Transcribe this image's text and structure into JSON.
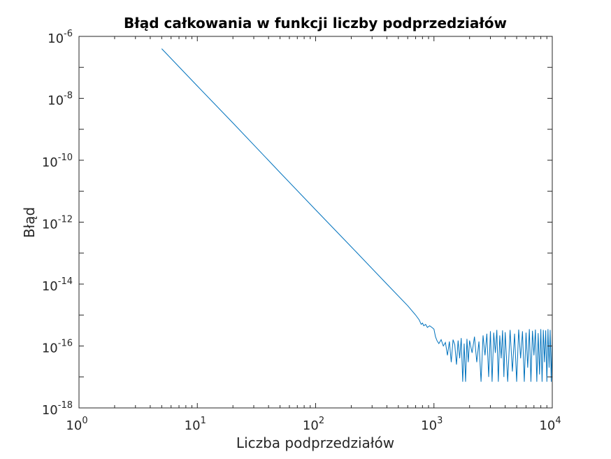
{
  "chart_data": {
    "type": "line",
    "title": "Błąd całkowania w funkcji liczby podprzedziałów",
    "xlabel": "Liczba podprzedziałów",
    "ylabel": "Błąd",
    "xscale": "log",
    "yscale": "log",
    "xlim": [
      1,
      10000
    ],
    "ylim": [
      1e-18,
      1e-06
    ],
    "grid": false,
    "box": true,
    "xticks": [
      {
        "base": "10",
        "exp": "0"
      },
      {
        "base": "10",
        "exp": "1"
      },
      {
        "base": "10",
        "exp": "2"
      },
      {
        "base": "10",
        "exp": "3"
      },
      {
        "base": "10",
        "exp": "4"
      }
    ],
    "yticks": [
      {
        "base": "10",
        "exp": "-18"
      },
      {
        "base": "10",
        "exp": "-16"
      },
      {
        "base": "10",
        "exp": "-14"
      },
      {
        "base": "10",
        "exp": "-12"
      },
      {
        "base": "10",
        "exp": "-10"
      },
      {
        "base": "10",
        "exp": "-8"
      },
      {
        "base": "10",
        "exp": "-6"
      }
    ],
    "series": [
      {
        "color": "#0072bd",
        "x": [
          5,
          10,
          20,
          50,
          100,
          200,
          400,
          600,
          700,
          750,
          780,
          800,
          820,
          850,
          880,
          920,
          960,
          1000,
          1030,
          1060,
          1100,
          1150,
          1200,
          1250,
          1300,
          1350,
          1400,
          1450,
          1500,
          1550,
          1600,
          1650,
          1700,
          1750,
          1800,
          1850,
          1900,
          1950,
          2000,
          2100,
          2200,
          2300,
          2400,
          2500,
          2600,
          2700,
          2800,
          2900,
          3000,
          3100,
          3200,
          3300,
          3400,
          3500,
          3600,
          3700,
          3800,
          3900,
          4000,
          4200,
          4400,
          4600,
          4800,
          5000,
          5200,
          5400,
          5600,
          5800,
          6000,
          6200,
          6400,
          6600,
          6800,
          7000,
          7200,
          7400,
          7600,
          7800,
          8000,
          8200,
          8400,
          8600,
          8800,
          9000,
          9200,
          9400,
          9600,
          9800,
          10000
        ],
        "y": [
          4e-07,
          2.5e-08,
          1.6e-09,
          4e-11,
          2.5e-12,
          1.6e-13,
          1e-14,
          2e-15,
          1e-15,
          7e-16,
          5e-16,
          5.5e-16,
          4.5e-16,
          5e-16,
          4e-16,
          4.5e-16,
          4e-16,
          3.5e-16,
          2e-16,
          1.5e-16,
          1.2e-16,
          1.6e-16,
          1e-16,
          1.3e-16,
          5e-17,
          1.4e-16,
          3e-17,
          1.6e-16,
          1.1e-16,
          2.5e-17,
          1.5e-16,
          4e-17,
          1.8e-16,
          7e-18,
          1.2e-16,
          7e-18,
          1.7e-16,
          3e-17,
          1.5e-16,
          6e-17,
          2e-16,
          3e-17,
          1.4e-16,
          7e-18,
          2.2e-16,
          5e-17,
          2.5e-16,
          1e-17,
          3e-16,
          7e-18,
          2.7e-16,
          6e-17,
          3.3e-16,
          7e-18,
          2.2e-16,
          4e-17,
          3.2e-16,
          1e-17,
          2.8e-16,
          7e-18,
          3.3e-16,
          1.5e-17,
          2.5e-16,
          7e-18,
          3.4e-16,
          4e-17,
          3e-16,
          7e-18,
          2.7e-16,
          2e-17,
          3.5e-16,
          7e-18,
          3.1e-16,
          5e-17,
          3.4e-16,
          7e-18,
          2.6e-16,
          1.2e-17,
          3.5e-16,
          7e-18,
          3.3e-16,
          3e-17,
          3.2e-16,
          7e-18,
          3.5e-16,
          2e-17,
          3.3e-16,
          7e-18,
          2.5e-16
        ]
      }
    ]
  }
}
